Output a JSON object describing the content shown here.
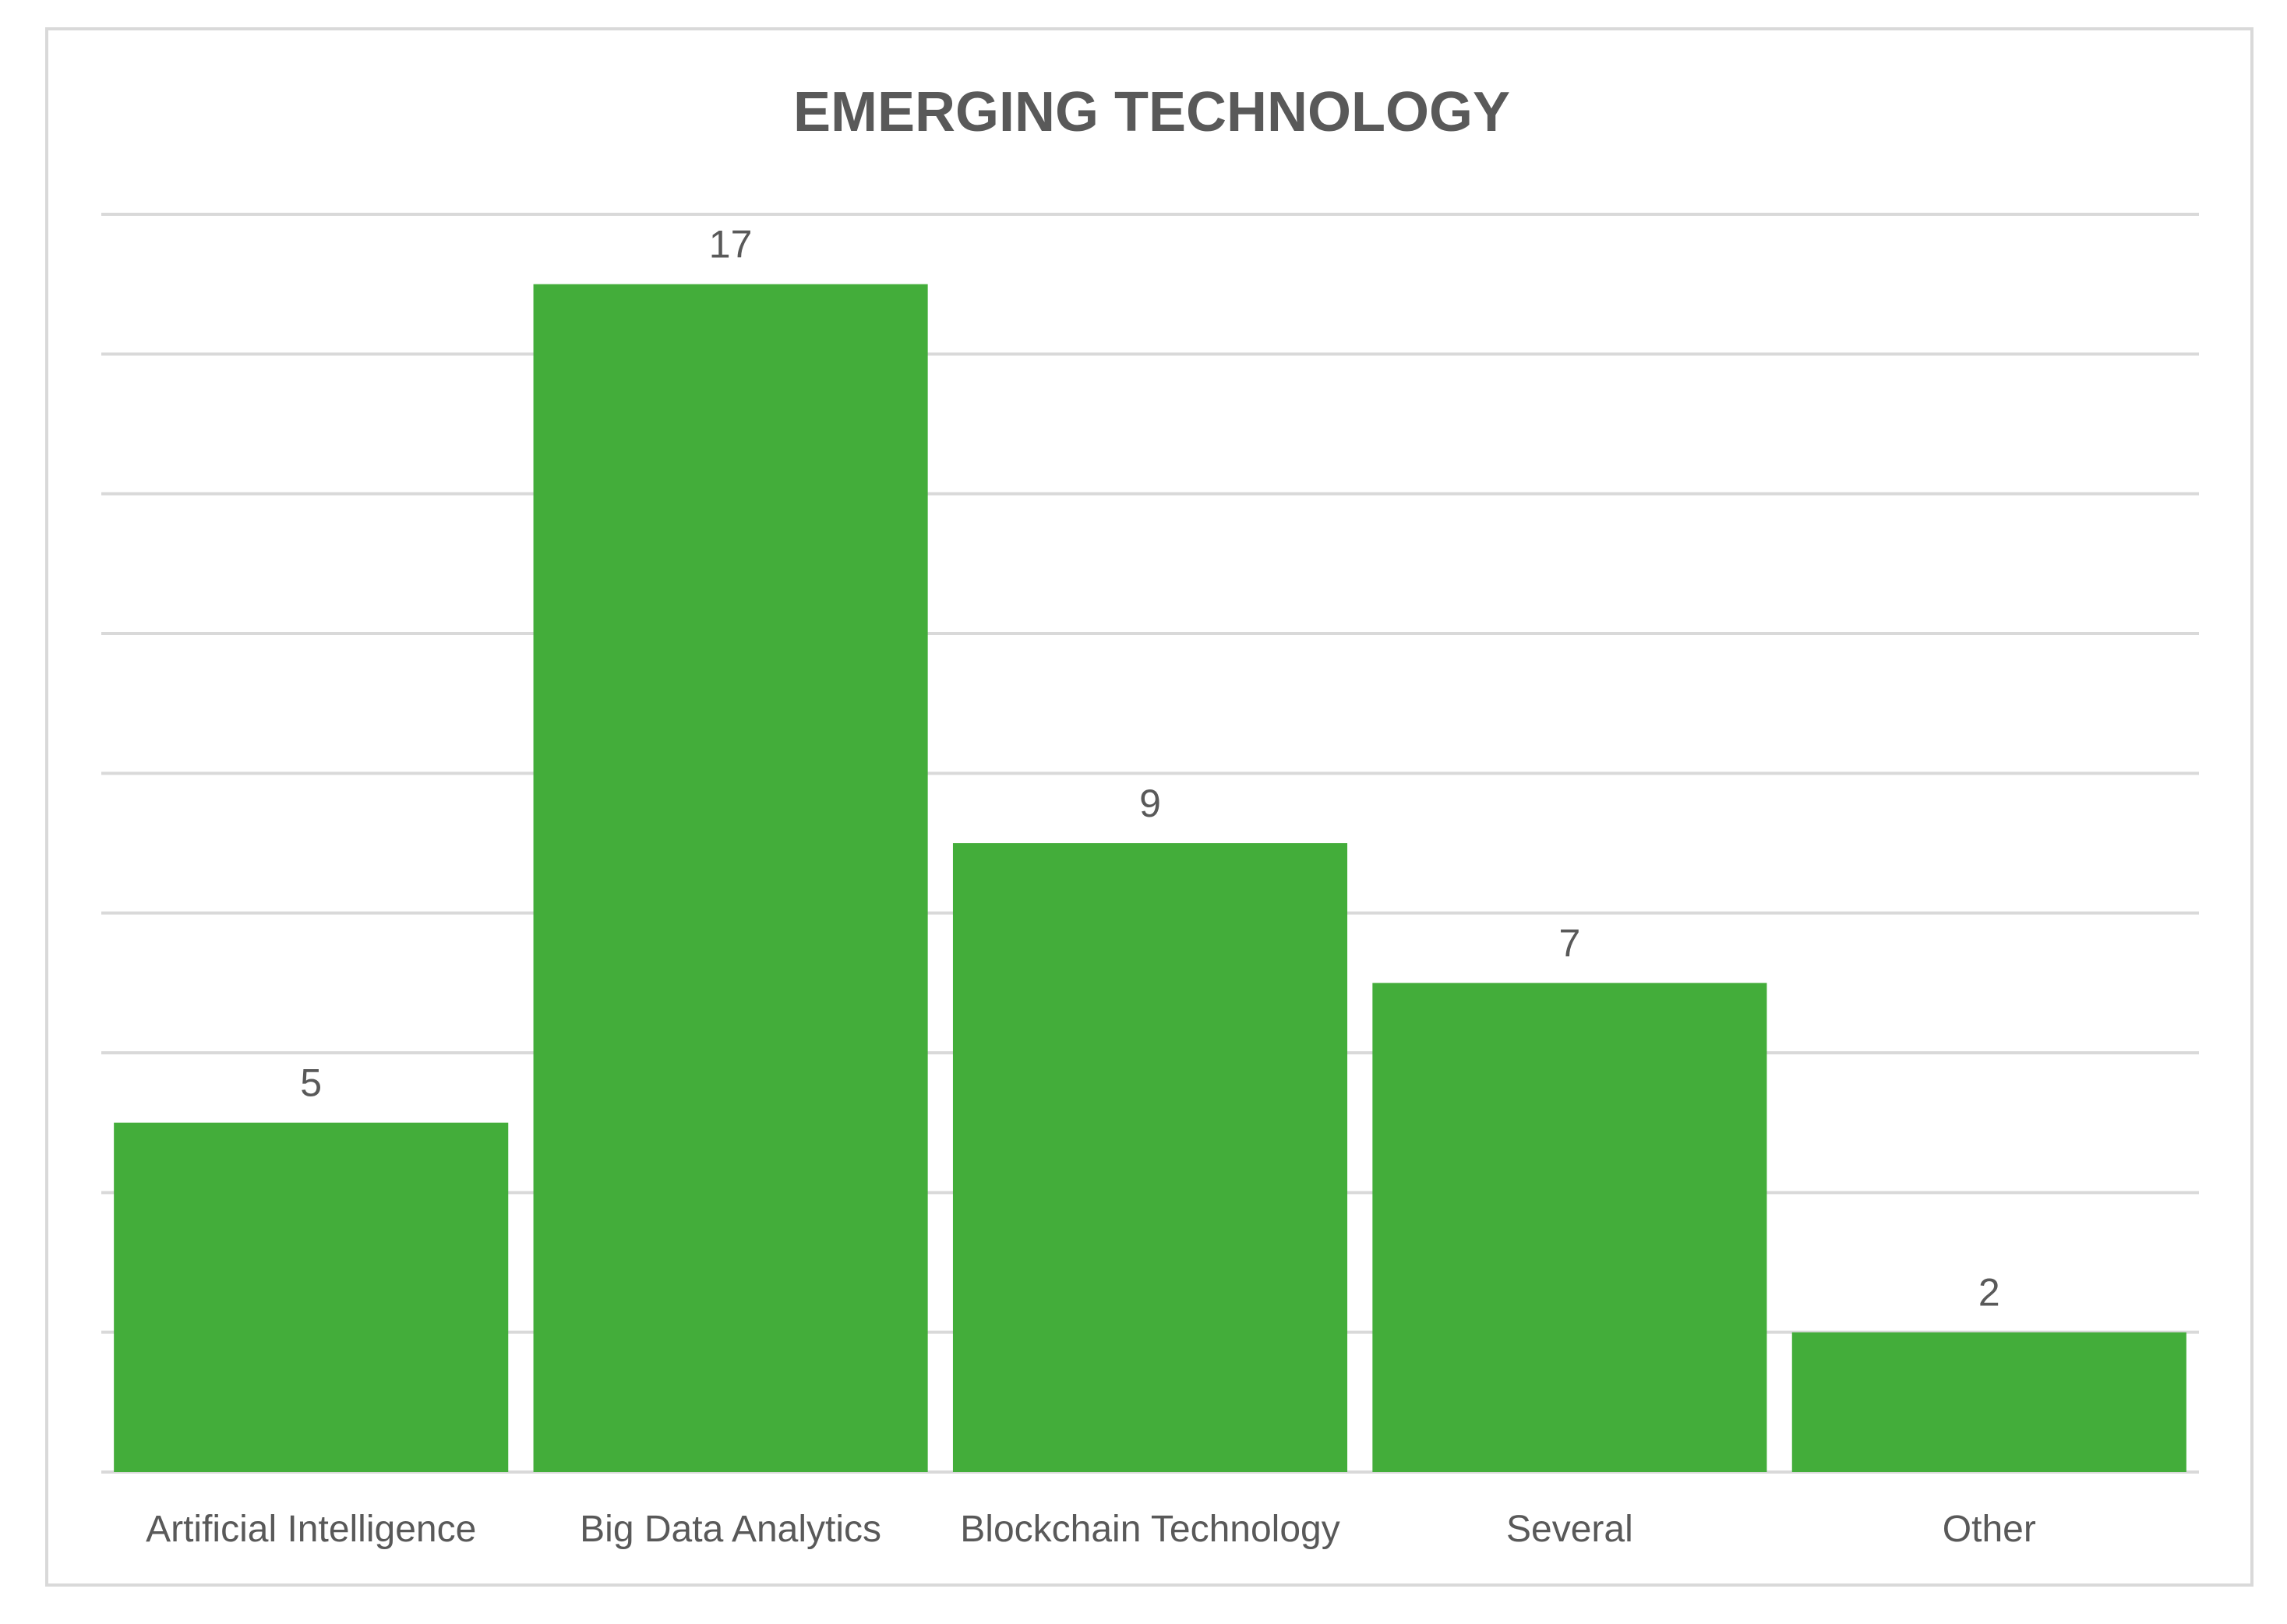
{
  "chart_data": {
    "type": "bar",
    "title": "EMERGING TECHNOLOGY",
    "categories": [
      "Artificial Intelligence",
      "Big Data Analytics",
      "Blockchain Technology",
      "Several",
      "Other"
    ],
    "values": [
      5,
      17,
      9,
      7,
      2
    ],
    "ylim": [
      0,
      18
    ],
    "grid": true,
    "bar_color": "#43ad3a",
    "grid_color": "#d9d9d9",
    "text_color": "#595959"
  }
}
